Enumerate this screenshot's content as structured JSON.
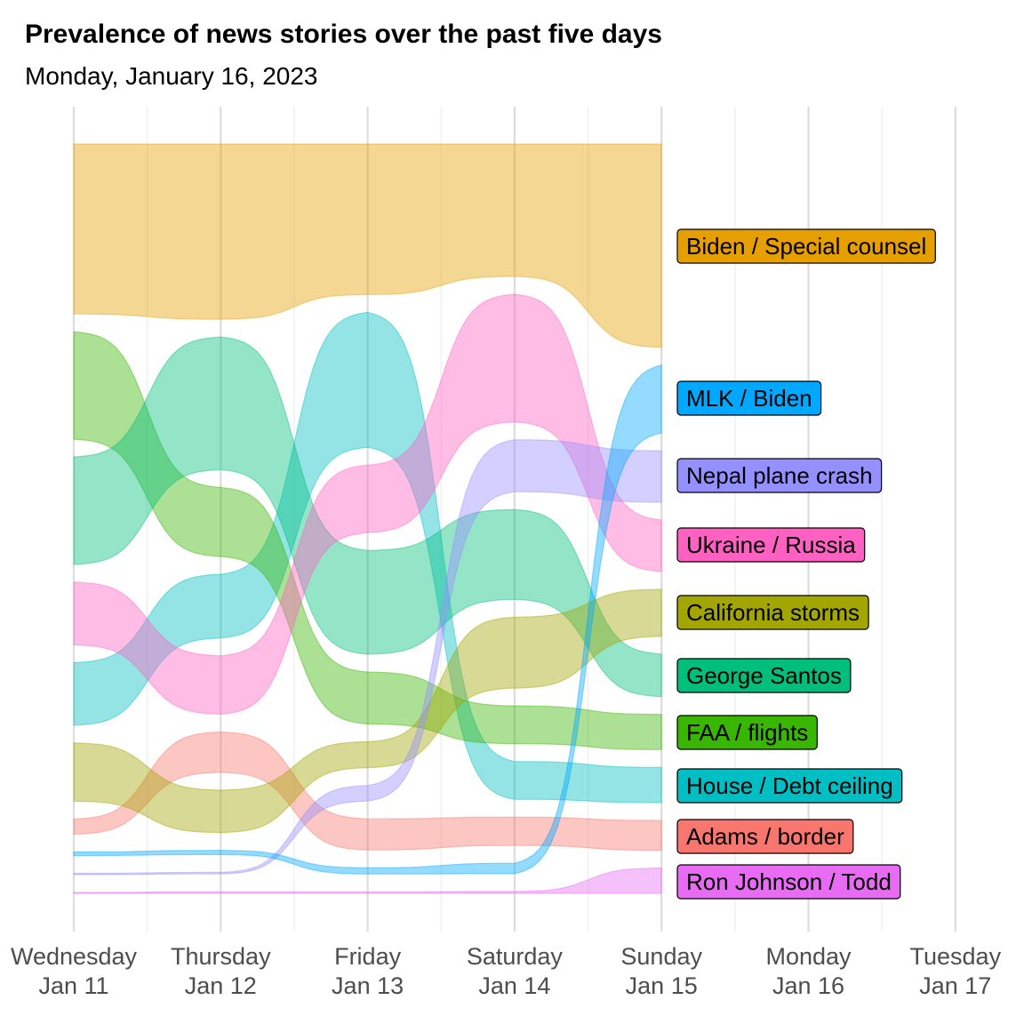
{
  "chart_data": {
    "type": "area",
    "subtype": "streamgraph",
    "title": "Prevalence of news stories over the past five days",
    "subtitle": "Monday, January 16, 2023",
    "x_ticks": [
      {
        "day": "Wednesday",
        "date": "Jan 11"
      },
      {
        "day": "Thursday",
        "date": "Jan 12"
      },
      {
        "day": "Friday",
        "date": "Jan 13"
      },
      {
        "day": "Saturday",
        "date": "Jan 14"
      },
      {
        "day": "Sunday",
        "date": "Jan 15"
      },
      {
        "day": "Monday",
        "date": "Jan 16"
      },
      {
        "day": "Tuesday",
        "date": "Jan 17"
      }
    ],
    "x": [
      "Jan 11",
      "Jan 12",
      "Jan 13",
      "Jan 14",
      "Jan 15"
    ],
    "grid": true,
    "legend": "direct labels at right",
    "series": [
      {
        "name": "Biden / Special counsel",
        "color": "#E69F00",
        "rank": [
          1,
          1,
          1,
          1,
          1
        ],
        "values": [
          19,
          16.5,
          14.5,
          14,
          22.5
        ]
      },
      {
        "name": "MLK / Biden",
        "color": "#00A9FF",
        "rank": [
          9,
          9,
          9,
          9,
          2
        ],
        "values": [
          0.4,
          0.4,
          0.6,
          1.1,
          7.5
        ]
      },
      {
        "name": "Nepal plane crash",
        "color": "#9590FF",
        "rank": [
          10,
          10,
          7,
          3,
          3
        ],
        "values": [
          0.15,
          0.15,
          1.5,
          5.5,
          5.7
        ]
      },
      {
        "name": "Ukraine / Russia",
        "color": "#FF61C3",
        "rank": [
          5,
          6,
          3,
          2,
          4
        ],
        "values": [
          7,
          5.5,
          6.5,
          13.5,
          5.7
        ]
      },
      {
        "name": "California storms",
        "color": "#A3A500",
        "rank": [
          7,
          8,
          6,
          5,
          5
        ],
        "values": [
          6.5,
          4,
          2.5,
          7.5,
          5.2
        ]
      },
      {
        "name": "George Santos",
        "color": "#00BF7D",
        "rank": [
          3,
          3,
          4,
          4,
          6
        ],
        "values": [
          12,
          12.5,
          10,
          9.5,
          4.7
        ]
      },
      {
        "name": "FAA / flights",
        "color": "#39B600",
        "rank": [
          2,
          4,
          5,
          6,
          7
        ],
        "values": [
          12,
          6.5,
          5,
          4,
          3.9
        ]
      },
      {
        "name": "House / Debt ceiling",
        "color": "#00BFC4",
        "rank": [
          6,
          5,
          2,
          7,
          8
        ],
        "values": [
          7,
          6,
          13,
          4,
          3.9
        ]
      },
      {
        "name": "Adams / border",
        "color": "#F8766D",
        "rank": [
          8,
          7,
          8,
          8,
          9
        ],
        "values": [
          1.7,
          3.8,
          3,
          3,
          3.3
        ]
      },
      {
        "name": "Ron Johnson / Todd",
        "color": "#E76BF3",
        "rank": [
          11,
          11,
          10,
          10,
          10
        ],
        "values": [
          0.1,
          0.15,
          0.15,
          0.2,
          2.8
        ]
      }
    ]
  }
}
